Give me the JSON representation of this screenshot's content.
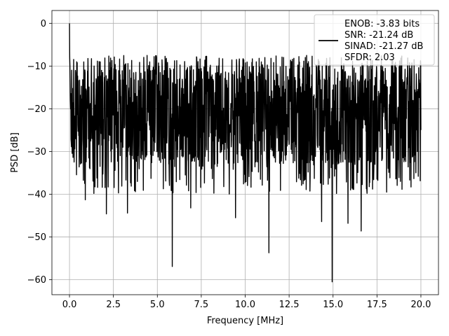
{
  "chart_data": {
    "type": "line",
    "xlabel": "Frequency [MHz]",
    "ylabel": "PSD [dB]",
    "xlim": [
      -1.0,
      21.0
    ],
    "ylim": [
      -63.5,
      3.0
    ],
    "grid": true,
    "x_ticks": [
      0.0,
      2.5,
      5.0,
      7.5,
      10.0,
      12.5,
      15.0,
      17.5,
      20.0
    ],
    "x_tick_labels": [
      "0.0",
      "2.5",
      "5.0",
      "7.5",
      "10.0",
      "12.5",
      "15.0",
      "17.5",
      "20.0"
    ],
    "y_ticks": [
      0,
      -10,
      -20,
      -30,
      -40,
      -50,
      -60
    ],
    "y_tick_labels": [
      "0",
      "−10",
      "−20",
      "−30",
      "−40",
      "−50",
      "−60"
    ],
    "legend": {
      "placement": "top-right",
      "entries": [
        "ENOB: -3.83 bits",
        "SNR: -21.24 dB",
        "SINAD: -21.27 dB",
        "SFDR: 2.03"
      ]
    },
    "series": [
      {
        "color": "#000000",
        "x_range": [
          0.0,
          20.0
        ],
        "num_points": 1600,
        "start_value": 0.0,
        "typical_band": [
          -35.0,
          -9.0
        ],
        "upper_envelope": -7.5,
        "notable_dips": [
          {
            "x": 0.9,
            "y": -41.3
          },
          {
            "x": 2.1,
            "y": -44.6
          },
          {
            "x": 3.3,
            "y": -44.4
          },
          {
            "x": 5.85,
            "y": -56.9
          },
          {
            "x": 6.9,
            "y": -43.2
          },
          {
            "x": 9.45,
            "y": -45.5
          },
          {
            "x": 11.35,
            "y": -53.7
          },
          {
            "x": 14.35,
            "y": -46.4
          },
          {
            "x": 14.95,
            "y": -60.5
          },
          {
            "x": 15.85,
            "y": -46.8
          },
          {
            "x": 16.6,
            "y": -48.6
          },
          {
            "x": 18.05,
            "y": -39.5
          }
        ]
      }
    ]
  }
}
